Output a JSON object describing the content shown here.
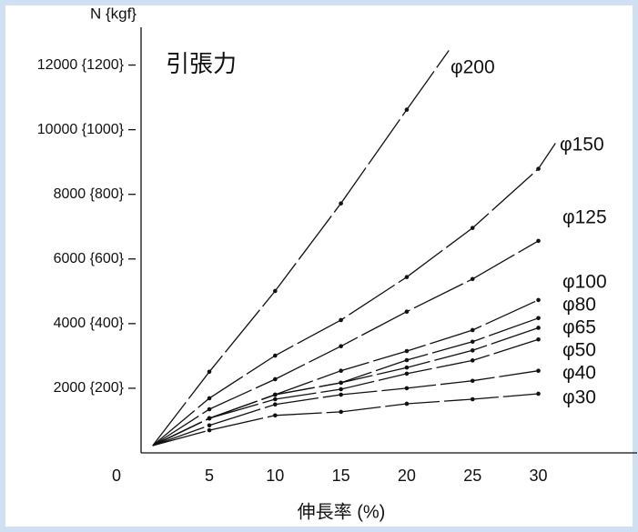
{
  "chart_data": {
    "type": "line",
    "title": "引張力",
    "y_label": "N {kgf}",
    "x_label": "伸長率 (%)",
    "xlim": [
      0,
      37.5
    ],
    "xticks": [
      0,
      5,
      10,
      15,
      20,
      25,
      30
    ],
    "ylim": [
      0,
      13000
    ],
    "yticks": [
      {
        "value": 2000,
        "label": "2000 {200}"
      },
      {
        "value": 4000,
        "label": "4000 {400}"
      },
      {
        "value": 6000,
        "label": "6000 {600}"
      },
      {
        "value": 8000,
        "label": "8000 {800}"
      },
      {
        "value": 10000,
        "label": "10000 {1000}"
      },
      {
        "value": 12000,
        "label": "12000 {1200}"
      }
    ],
    "series": [
      {
        "name": "φ200",
        "color": "#111111",
        "x": [
          0.7,
          5,
          10,
          15,
          20,
          23.2
        ],
        "values": [
          225,
          2510,
          5010,
          7720,
          10620,
          12450
        ]
      },
      {
        "name": "φ150",
        "color": "#111111",
        "x": [
          0.7,
          5,
          10,
          15,
          20,
          25,
          30,
          31.3
        ],
        "values": [
          225,
          1690,
          3010,
          4110,
          5440,
          6960,
          8790,
          9580
        ]
      },
      {
        "name": "φ125",
        "color": "#111111",
        "x": [
          0.7,
          5,
          10,
          15,
          20,
          25,
          30
        ],
        "values": [
          225,
          1350,
          2280,
          3300,
          4370,
          5380,
          6560
        ]
      },
      {
        "name": "φ100",
        "color": "#111111",
        "x": [
          0.7,
          5,
          10,
          15,
          20,
          25,
          30
        ],
        "values": [
          225,
          1070,
          1800,
          2540,
          3150,
          3800,
          4730
        ]
      },
      {
        "name": "φ80",
        "color": "#111111",
        "x": [
          0.7,
          5,
          10,
          15,
          20,
          25,
          30
        ],
        "values": [
          225,
          1070,
          1800,
          2170,
          2870,
          3440,
          4170
        ]
      },
      {
        "name": "φ65",
        "color": "#111111",
        "x": [
          0.7,
          5,
          10,
          15,
          20,
          25,
          30
        ],
        "values": [
          225,
          1070,
          1800,
          2170,
          2640,
          3170,
          3870
        ]
      },
      {
        "name": "φ50",
        "color": "#111111",
        "x": [
          0.7,
          5,
          10,
          15,
          20,
          25,
          30
        ],
        "values": [
          225,
          1070,
          1660,
          1970,
          2450,
          2860,
          3510
        ]
      },
      {
        "name": "φ40",
        "color": "#111111",
        "x": [
          0.7,
          5,
          10,
          15,
          20,
          25,
          30
        ],
        "values": [
          225,
          850,
          1500,
          1800,
          2000,
          2230,
          2540
        ]
      },
      {
        "name": "φ30",
        "color": "#111111",
        "x": [
          0.7,
          5,
          10,
          15,
          20,
          25,
          30
        ],
        "values": [
          225,
          700,
          1160,
          1270,
          1520,
          1660,
          1830
        ]
      }
    ]
  }
}
